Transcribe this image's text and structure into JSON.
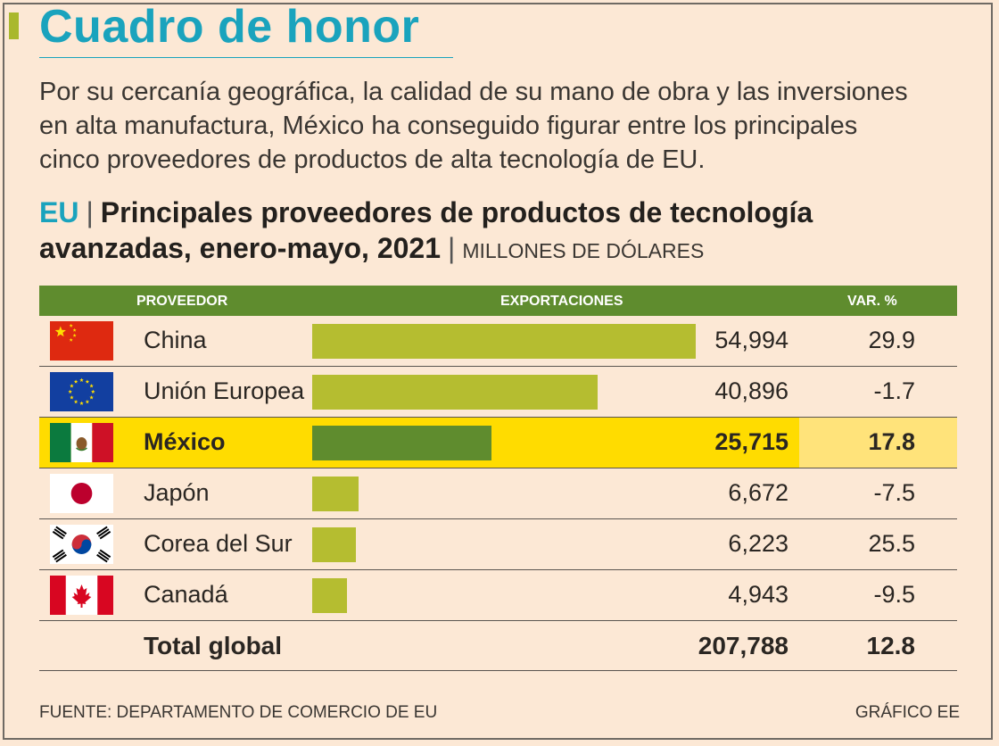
{
  "title": "Cuadro de honor",
  "intro": [
    "Por su cercanía geográfica, la calidad de su mano de obra y las inversiones",
    "en alta manufactura, México ha conseguido figurar entre los principales",
    "cinco proveedores de productos de alta tecnología de EU."
  ],
  "heading": {
    "prefix": "EU",
    "separator": "|",
    "line1": "Principales proveedores de productos de tecnología",
    "line2": "avanzadas, enero-mayo, 2021",
    "units": "MILLONES DE DÓLARES"
  },
  "columns": {
    "provider": "PROVEEDOR",
    "exports": "EXPORTACIONES",
    "var": "VAR. %"
  },
  "colors": {
    "bar": "#b5bd30",
    "bar_highlight": "#5f8c2e",
    "highlight_row": "#ffdc00",
    "header": "#5f8c2e",
    "title": "#1aa3bd"
  },
  "chart_data": {
    "type": "bar",
    "orientation": "horizontal",
    "categories": [
      "China",
      "Unión Europea",
      "México",
      "Japón",
      "Corea del Sur",
      "Canadá"
    ],
    "values": [
      54994,
      40896,
      25715,
      6672,
      6223,
      4943
    ],
    "value_labels": [
      "54,994",
      "40,896",
      "25,715",
      "6,672",
      "6,223",
      "4,943"
    ],
    "var_pct": [
      "29.9",
      "-1.7",
      "17.8",
      "-7.5",
      "25.5",
      "-9.5"
    ],
    "flags": [
      "china-flag-icon",
      "eu-flag-icon",
      "mexico-flag-icon",
      "japan-flag-icon",
      "south-korea-flag-icon",
      "canada-flag-icon"
    ],
    "highlight": "México",
    "xlim": [
      0,
      55000
    ],
    "title": "Principales proveedores de productos de tecnología avanzadas, enero-mayo, 2021",
    "xlabel": "EXPORTACIONES",
    "ylabel": "PROVEEDOR",
    "units": "MILLONES DE DÓLARES"
  },
  "total": {
    "label": "Total global",
    "value": "207,788",
    "var": "12.8"
  },
  "footer": {
    "source": "FUENTE: DEPARTAMENTO DE COMERCIO DE EU",
    "credit": "GRÁFICO EE"
  }
}
